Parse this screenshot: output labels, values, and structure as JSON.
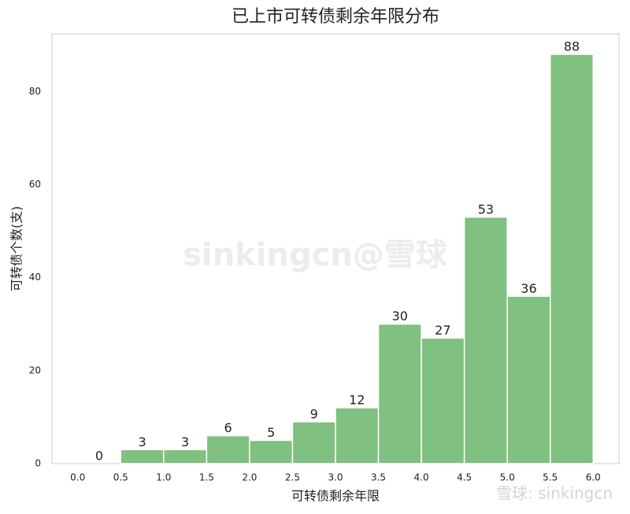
{
  "chart_data": {
    "type": "histogram",
    "title": "已上市可转债剩余年限分布",
    "xlabel": "可转债剩余年限",
    "ylabel": "可转债个数(支)",
    "bins": [
      0.0,
      0.5,
      1.0,
      1.5,
      2.0,
      2.5,
      3.0,
      3.5,
      4.0,
      4.5,
      5.0,
      5.5,
      6.0
    ],
    "values": [
      0,
      3,
      3,
      6,
      5,
      9,
      12,
      30,
      27,
      53,
      36,
      88
    ],
    "color": "#80c080",
    "xlim": [
      -0.3,
      6.3
    ],
    "ylim": [
      0,
      92.4
    ],
    "xticks": [
      {
        "value": 0,
        "label": "0.0"
      },
      {
        "value": 0.5,
        "label": "0.5"
      },
      {
        "value": 1,
        "label": "1.0"
      },
      {
        "value": 1.5,
        "label": "1.5"
      },
      {
        "value": 2,
        "label": "2.0"
      },
      {
        "value": 2.5,
        "label": "2.5"
      },
      {
        "value": 3,
        "label": "3.0"
      },
      {
        "value": 3.5,
        "label": "3.5"
      },
      {
        "value": 4,
        "label": "4.0"
      },
      {
        "value": 4.5,
        "label": "4.5"
      },
      {
        "value": 5,
        "label": "5.0"
      },
      {
        "value": 5.5,
        "label": "5.5"
      },
      {
        "value": 6,
        "label": "6.0"
      }
    ],
    "yticks": [
      0,
      20,
      40,
      60,
      80
    ],
    "grid": false,
    "watermark": "sinkingcn@雪球",
    "source_mark": "雪球: sinkingcn"
  }
}
